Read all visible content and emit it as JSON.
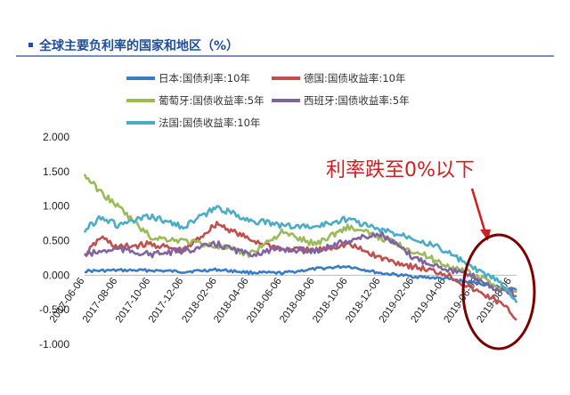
{
  "chart_data": {
    "type": "line",
    "title": "全球主要负利率的国家和地区（%）",
    "ylim": [
      -1.0,
      2.0
    ],
    "yticks": [
      "2.000",
      "1.500",
      "1.000",
      "0.500",
      "0.000",
      "-0.500",
      "-1.000"
    ],
    "ytick_values": [
      2.0,
      1.5,
      1.0,
      0.5,
      0.0,
      -0.5,
      -1.0
    ],
    "xlim": [
      "2017-06-06",
      "2019-08-15"
    ],
    "xticks": [
      "2017-06-06",
      "2017-08-06",
      "2017-10-06",
      "2017-12-06",
      "2018-02-06",
      "2018-04-06",
      "2018-06-06",
      "2018-08-06",
      "2018-10-06",
      "2018-12-06",
      "2019-02-06",
      "2019-04-06",
      "2019-06-06",
      "2019-08-06"
    ],
    "legend": "top",
    "grid": false,
    "series": [
      {
        "name": "日本:国债利率:10年",
        "color": "#3a7cc4",
        "x": [
          "2017-06-06",
          "2017-08-06",
          "2017-10-06",
          "2017-12-06",
          "2018-02-06",
          "2018-04-06",
          "2018-06-06",
          "2018-08-06",
          "2018-10-06",
          "2018-12-06",
          "2019-02-06",
          "2019-04-06",
          "2019-06-06",
          "2019-08-06",
          "2019-08-15"
        ],
        "values": [
          0.06,
          0.07,
          0.07,
          0.05,
          0.08,
          0.04,
          0.03,
          0.09,
          0.13,
          0.03,
          -0.02,
          -0.05,
          -0.12,
          -0.2,
          -0.22
        ]
      },
      {
        "name": "德国:国债收益率:10年",
        "color": "#c0504d",
        "x": [
          "2017-06-06",
          "2017-07-06",
          "2017-08-06",
          "2017-10-06",
          "2017-12-06",
          "2018-02-06",
          "2018-04-06",
          "2018-06-06",
          "2018-08-06",
          "2018-10-06",
          "2018-12-06",
          "2019-02-06",
          "2019-04-06",
          "2019-06-06",
          "2019-07-06",
          "2019-08-06",
          "2019-08-15"
        ],
        "values": [
          0.28,
          0.55,
          0.4,
          0.45,
          0.35,
          0.75,
          0.52,
          0.38,
          0.35,
          0.45,
          0.25,
          0.12,
          0.02,
          -0.25,
          -0.35,
          -0.55,
          -0.65
        ]
      },
      {
        "name": "葡萄牙:国债收益率:5年",
        "color": "#9bbb59",
        "x": [
          "2017-06-06",
          "2017-07-06",
          "2017-08-06",
          "2017-10-06",
          "2017-12-06",
          "2018-02-06",
          "2018-04-06",
          "2018-06-06",
          "2018-08-06",
          "2018-10-06",
          "2018-12-06",
          "2019-02-06",
          "2019-04-06",
          "2019-06-06",
          "2019-07-06",
          "2019-08-06",
          "2019-08-15"
        ],
        "values": [
          1.45,
          1.2,
          1.0,
          0.55,
          0.5,
          0.42,
          0.3,
          0.62,
          0.45,
          0.7,
          0.55,
          0.35,
          0.15,
          -0.02,
          -0.15,
          -0.25,
          -0.25
        ]
      },
      {
        "name": "西班牙:国债收益率:5年",
        "color": "#8064a2",
        "x": [
          "2017-06-06",
          "2017-08-06",
          "2017-10-06",
          "2017-12-06",
          "2018-02-06",
          "2018-04-06",
          "2018-06-06",
          "2018-08-06",
          "2018-10-06",
          "2018-12-06",
          "2019-02-06",
          "2019-04-06",
          "2019-06-06",
          "2019-07-06",
          "2019-08-06",
          "2019-08-15"
        ],
        "values": [
          0.3,
          0.38,
          0.3,
          0.35,
          0.45,
          0.3,
          0.38,
          0.35,
          0.5,
          0.6,
          0.25,
          0.1,
          -0.05,
          -0.2,
          -0.25,
          -0.3
        ]
      },
      {
        "name": "法国:国债收益率:10年",
        "color": "#4bacc6",
        "x": [
          "2017-06-06",
          "2017-07-06",
          "2017-08-06",
          "2017-10-06",
          "2017-12-06",
          "2018-02-06",
          "2018-04-06",
          "2018-06-06",
          "2018-08-06",
          "2018-10-06",
          "2018-12-06",
          "2019-02-06",
          "2019-04-06",
          "2019-06-06",
          "2019-07-06",
          "2019-08-06",
          "2019-08-15"
        ],
        "values": [
          0.65,
          0.85,
          0.72,
          0.85,
          0.7,
          0.98,
          0.8,
          0.72,
          0.7,
          0.82,
          0.65,
          0.55,
          0.35,
          0.05,
          -0.05,
          -0.3,
          -0.4
        ]
      }
    ],
    "annotation": {
      "text": "利率跌至0%以下",
      "color": "#d21e1e"
    }
  }
}
